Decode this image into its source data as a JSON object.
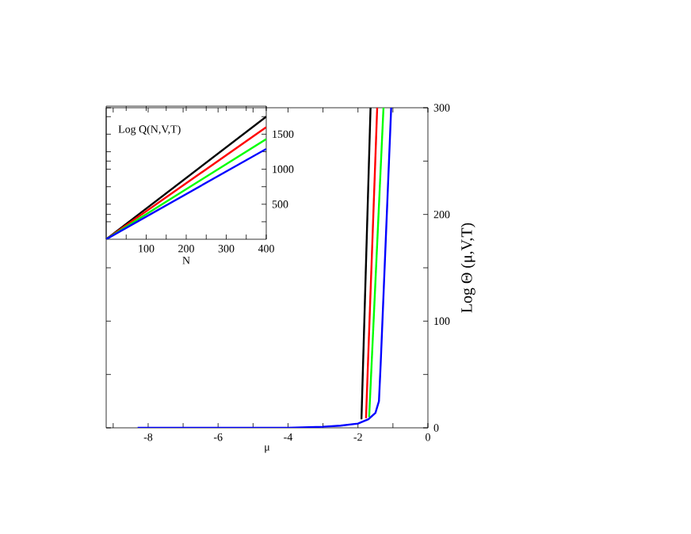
{
  "chart_data": [
    {
      "type": "line",
      "xlabel": "μ",
      "ylabel": "Log Θ (μ,V,T)",
      "xlim": [
        -9.2,
        0
      ],
      "ylim": [
        0,
        300
      ],
      "xticks": [
        -8,
        -6,
        -4,
        -2,
        0,
        {
          "value": -9,
          "label": null
        },
        {
          "value": -7,
          "label": null
        },
        {
          "value": -5,
          "label": null
        },
        {
          "value": -3,
          "label": null
        },
        {
          "value": -1,
          "label": null
        }
      ],
      "yticks": [
        0,
        100,
        200,
        300,
        {
          "value": 50,
          "label": null
        },
        {
          "value": 150,
          "label": null
        },
        {
          "value": 250,
          "label": null
        }
      ],
      "grid": false,
      "line_style": "solid",
      "marker": "none",
      "series": [
        {
          "color": "#000000",
          "x": [
            -1.9,
            -1.64
          ],
          "values": [
            8,
            300
          ]
        },
        {
          "color": "#ff0000",
          "x": [
            -1.77,
            -1.45
          ],
          "values": [
            9,
            300
          ]
        },
        {
          "color": "#00ff00",
          "x": [
            -1.68,
            -1.27
          ],
          "values": [
            10,
            300
          ]
        },
        {
          "color": "#0000ff",
          "x": [
            -8.3,
            -4,
            -3,
            -2.5,
            -2,
            -1.7,
            -1.5,
            -1.4,
            -1.35,
            -1.05
          ],
          "values": [
            0,
            0,
            1,
            2,
            4,
            8,
            14,
            25,
            60,
            300
          ]
        }
      ]
    },
    {
      "type": "line",
      "xlabel": "N",
      "annotations": [
        "Log Q(N,V,T)"
      ],
      "xlim": [
        0,
        400
      ],
      "ylim": [
        0,
        1900
      ],
      "xticks": [
        100,
        200,
        300,
        400,
        {
          "value": 50,
          "label": null
        },
        {
          "value": 150,
          "label": null
        },
        {
          "value": 250,
          "label": null
        },
        {
          "value": 350,
          "label": null
        }
      ],
      "yticks": [
        500,
        1000,
        1500,
        {
          "value": 250,
          "label": null
        },
        {
          "value": 750,
          "label": null
        },
        {
          "value": 1250,
          "label": null
        },
        {
          "value": 1750,
          "label": null
        }
      ],
      "grid": false,
      "line_style": "solid",
      "marker": "none",
      "series": [
        {
          "color": "#000000",
          "x": [
            0,
            400
          ],
          "values": [
            0,
            1750
          ]
        },
        {
          "color": "#ff0000",
          "x": [
            0,
            400
          ],
          "values": [
            0,
            1600
          ]
        },
        {
          "color": "#00ff00",
          "x": [
            0,
            400
          ],
          "values": [
            0,
            1430
          ]
        },
        {
          "color": "#0000ff",
          "x": [
            0,
            400
          ],
          "values": [
            0,
            1290
          ]
        }
      ]
    }
  ]
}
